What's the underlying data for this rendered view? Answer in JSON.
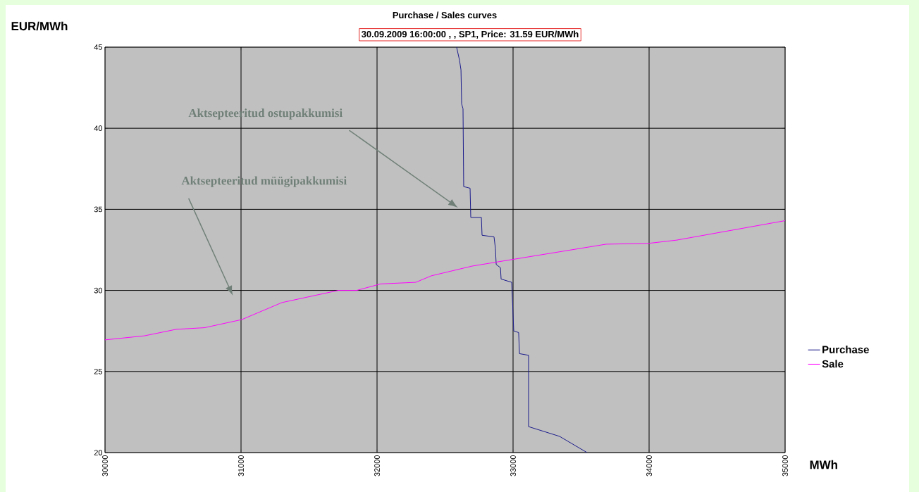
{
  "chart_data": {
    "type": "line",
    "title": "Purchase / Sales curves",
    "subtitle": "30.09.2009 16:00:00 , , SP1, Price: 31.59 EUR/MWh",
    "xlabel": "MWh",
    "ylabel": "EUR/MWh",
    "xlim": [
      30000,
      35000
    ],
    "xticks": [
      30000,
      31000,
      32000,
      33000,
      34000,
      35000
    ],
    "ylim": [
      20,
      45
    ],
    "yticks": [
      20,
      25,
      30,
      35,
      40,
      45
    ],
    "grid": true,
    "legend": "right",
    "annotations": [
      "Aktsepteeritud ostupakkumisi",
      "Aktsepteeritud müügipakkumisi"
    ],
    "series": [
      {
        "name": "Purchase",
        "color": "#1a1a8c",
        "x": [
          32585,
          32606,
          32617,
          32622,
          32632,
          32637,
          32684,
          32689,
          32767,
          32772,
          32860,
          32870,
          32876,
          32907,
          32912,
          32990,
          33005,
          33041,
          33047,
          33114,
          33114,
          33228,
          33342,
          33544
        ],
        "values": [
          45,
          44.2,
          43.6,
          41.5,
          41.2,
          36.4,
          36.3,
          34.5,
          34.5,
          33.4,
          33.3,
          32.6,
          31.6,
          31.4,
          30.7,
          30.5,
          27.5,
          27.4,
          26.1,
          26.0,
          21.6,
          21.3,
          21.0,
          20
        ]
      },
      {
        "name": "Sale",
        "color": "#ff00ff",
        "x": [
          30000,
          30290,
          30523,
          30731,
          31005,
          31301,
          31715,
          31850,
          32026,
          32285,
          32399,
          32699,
          32990,
          33684,
          33995,
          34202,
          35000
        ],
        "values": [
          26.95,
          27.2,
          27.6,
          27.7,
          28.2,
          29.25,
          30.0,
          30.0,
          30.4,
          30.5,
          30.9,
          31.5,
          31.9,
          32.85,
          32.9,
          33.1,
          34.3
        ]
      }
    ]
  }
}
